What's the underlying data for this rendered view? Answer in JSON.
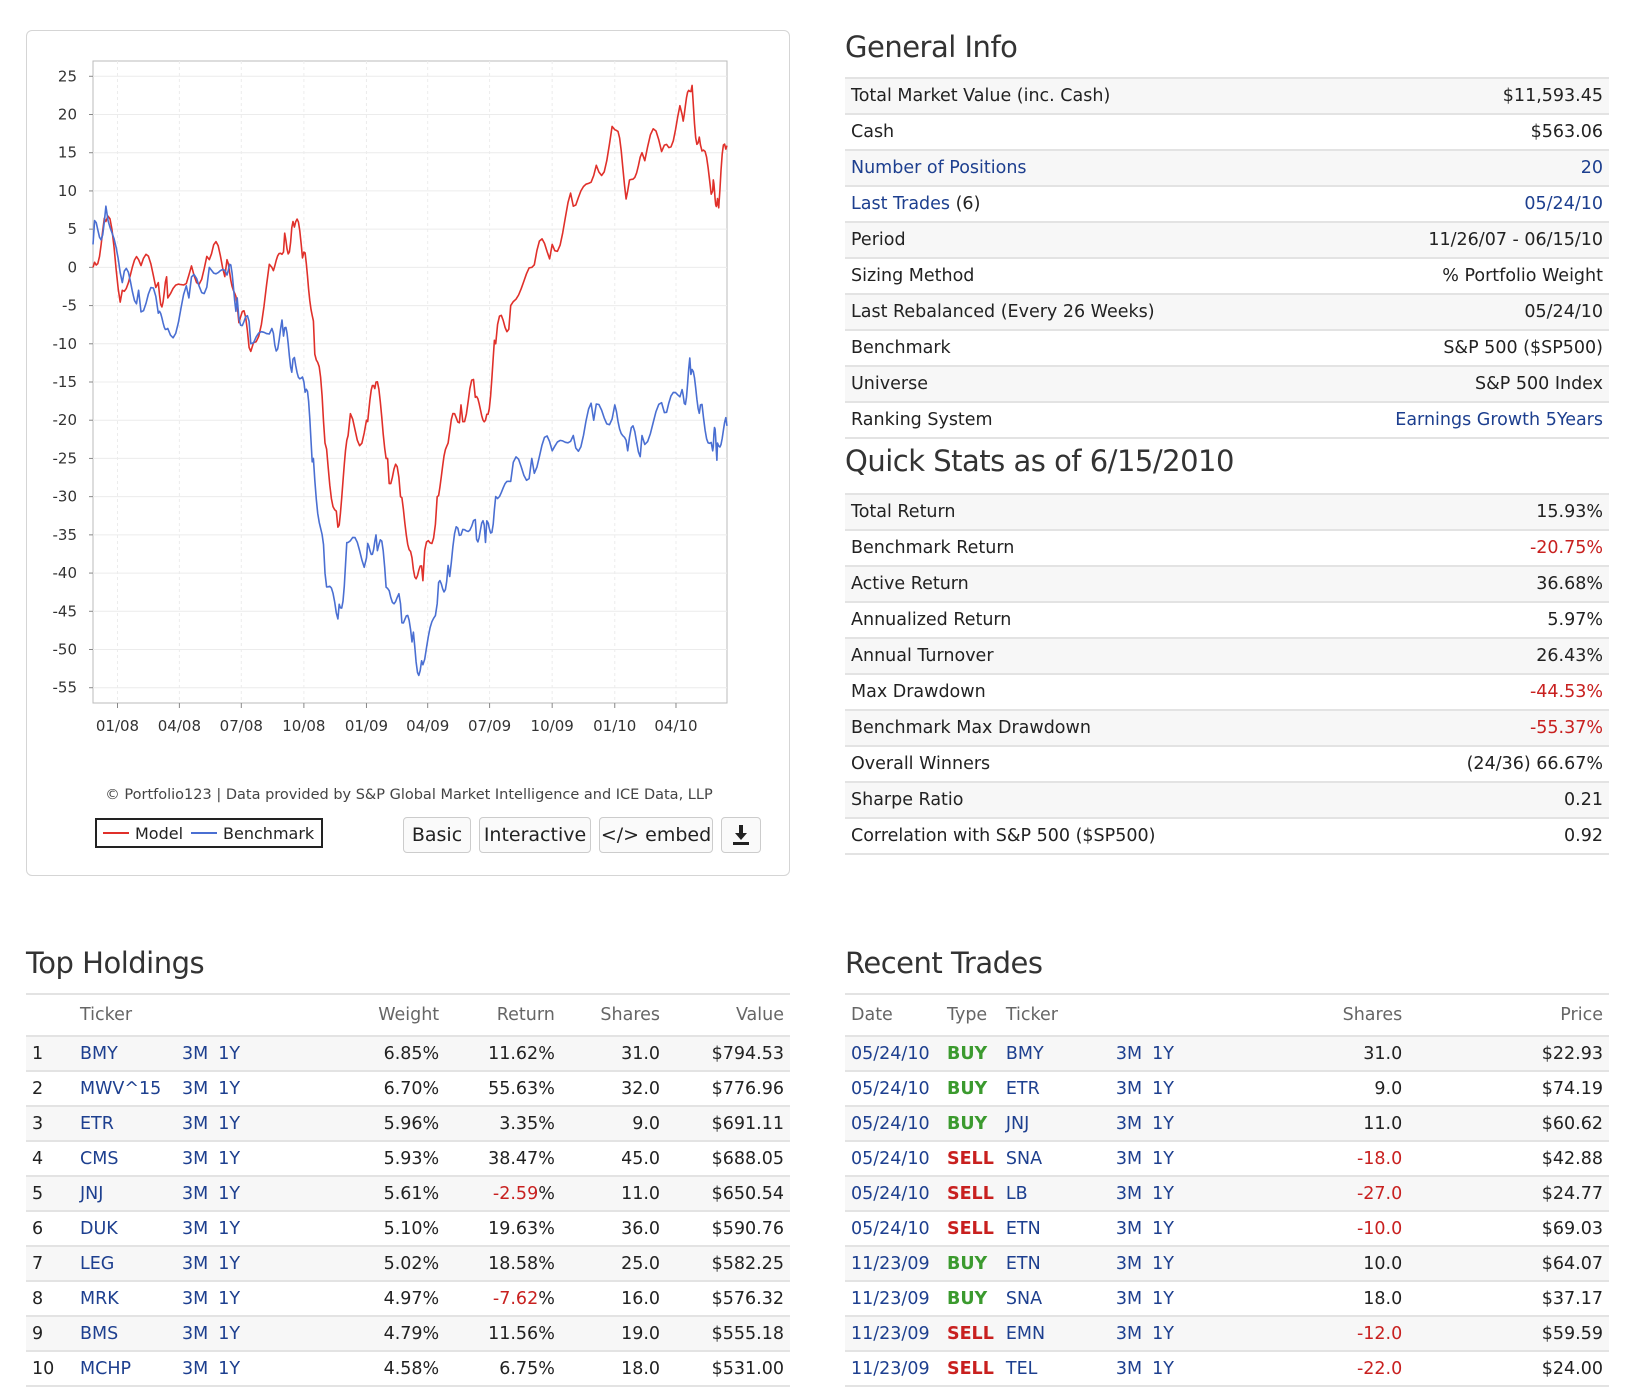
{
  "chart": {
    "credit": "© Portfolio123 | Data provided by S&P Global Market Intelligence and ICE Data, LLP",
    "legend": {
      "model": "Model",
      "benchmark": "Benchmark"
    },
    "buttons": {
      "basic": "Basic",
      "interactive": "Interactive",
      "embed": "</> embed"
    },
    "colors": {
      "model": "#e0302a",
      "benchmark": "#4a6fd2"
    }
  },
  "chart_data": {
    "type": "line",
    "title": "",
    "xlabel": "",
    "ylabel": "",
    "ylim": [
      -57,
      27
    ],
    "y_ticks": [
      25,
      20,
      15,
      10,
      5,
      0,
      -5,
      -10,
      -15,
      -20,
      -25,
      -30,
      -35,
      -40,
      -45,
      -50,
      -55
    ],
    "x_ticks": [
      "01/08",
      "04/08",
      "07/08",
      "10/08",
      "01/09",
      "04/09",
      "07/09",
      "10/09",
      "01/10",
      "04/10"
    ],
    "x_range": [
      "11/26/07",
      "06/15/10"
    ],
    "grid": true,
    "legend_position": "bottom-left",
    "x": [
      "11/26/07",
      "12/15/07",
      "01/08/08",
      "02/01/08",
      "03/01/08",
      "03/15/08",
      "04/15/08",
      "05/15/08",
      "06/10/08",
      "06/25/08",
      "07/15/08",
      "08/15/08",
      "09/01/08",
      "09/15/08",
      "10/01/08",
      "10/15/08",
      "11/01/08",
      "11/20/08",
      "12/05/08",
      "01/01/09",
      "01/15/09",
      "02/01/09",
      "02/20/09",
      "03/09/09",
      "03/25/09",
      "04/15/09",
      "05/01/09",
      "05/20/09",
      "06/10/09",
      "06/25/09",
      "07/10/09",
      "08/01/09",
      "09/01/09",
      "10/01/09",
      "11/01/09",
      "12/01/09",
      "01/01/10",
      "01/20/10",
      "02/10/10",
      "03/15/10",
      "04/10/10",
      "04/23/10",
      "05/07/10",
      "05/25/10",
      "06/01/10",
      "06/15/10"
    ],
    "series": [
      {
        "name": "Model",
        "values": [
          0,
          6,
          -3,
          1,
          -2,
          -4,
          -1,
          1,
          1,
          -5,
          -11,
          0,
          2,
          6,
          2,
          -7,
          -23,
          -34,
          -22,
          -20,
          -15,
          -25,
          -30,
          -38,
          -41,
          -30,
          -23,
          -18,
          -17,
          -20,
          -10,
          -5,
          0,
          3,
          8,
          12,
          18,
          10,
          15,
          16,
          20,
          23,
          16,
          10,
          9,
          15.93
        ]
      },
      {
        "name": "Benchmark",
        "values": [
          3,
          8,
          -2,
          -3,
          -6,
          -8,
          -4,
          0,
          -1,
          -4,
          -10,
          -8,
          -9,
          -12,
          -15,
          -25,
          -40,
          -46,
          -36,
          -38,
          -35,
          -42,
          -44,
          -49,
          -52,
          -44,
          -39,
          -35,
          -33,
          -36,
          -30,
          -28,
          -25,
          -24,
          -22,
          -20,
          -18,
          -24,
          -22,
          -19,
          -16,
          -14,
          -18,
          -24,
          -23,
          -20.75
        ]
      }
    ]
  },
  "general": {
    "title": "General Info",
    "rows": [
      {
        "label": "Total Market Value (inc. Cash)",
        "value": "$11,593.45",
        "link": false
      },
      {
        "label": "Cash",
        "value": "$563.06",
        "link": false
      },
      {
        "label": "Number of Positions",
        "value": "20",
        "link": true
      },
      {
        "label": "Last Trades",
        "label_extra": " (6)",
        "value": "05/24/10",
        "link": true
      },
      {
        "label": "Period",
        "value": "11/26/07 - 06/15/10",
        "link": false
      },
      {
        "label": "Sizing Method",
        "value": "% Portfolio Weight",
        "link": false
      },
      {
        "label": "Last Rebalanced (Every 26 Weeks)",
        "value": "05/24/10",
        "link": false
      },
      {
        "label": "Benchmark",
        "value": "S&P 500 ($SP500)",
        "link": false
      },
      {
        "label": "Universe",
        "value": "S&P 500 Index",
        "link": false
      },
      {
        "label": "Ranking System",
        "value": "Earnings Growth 5Years",
        "link": "value"
      }
    ]
  },
  "quick": {
    "title": "Quick Stats as of 6/15/2010",
    "rows": [
      {
        "label": "Total Return",
        "value": "15.93%",
        "neg": false
      },
      {
        "label": "Benchmark Return",
        "value": "-20.75%",
        "neg": true
      },
      {
        "label": "Active Return",
        "value": "36.68%",
        "neg": false
      },
      {
        "label": "Annualized Return",
        "value": "5.97%",
        "neg": false
      },
      {
        "label": "Annual Turnover",
        "value": "26.43%",
        "neg": false
      },
      {
        "label": "Max Drawdown",
        "value": "-44.53%",
        "neg": true
      },
      {
        "label": "Benchmark Max Drawdown",
        "value": "-55.37%",
        "neg": true
      },
      {
        "label": "Overall Winners",
        "value": "(24/36) 66.67%",
        "neg": false
      },
      {
        "label": "Sharpe Ratio",
        "value": "0.21",
        "neg": false
      },
      {
        "label": "Correlation with S&P 500 ($SP500)",
        "value": "0.92",
        "neg": false
      }
    ]
  },
  "holdings": {
    "title": "Top Holdings",
    "headers": {
      "ticker": "Ticker",
      "weight": "Weight",
      "return": "Return",
      "shares": "Shares",
      "value": "Value"
    },
    "link_3m": "3M",
    "link_1y": "1Y",
    "rows": [
      {
        "n": "1",
        "ticker": "BMY",
        "weight": "6.85%",
        "ret": "11.62",
        "neg": false,
        "shares": "31.0",
        "value": "$794.53"
      },
      {
        "n": "2",
        "ticker": "MWV^15",
        "weight": "6.70%",
        "ret": "55.63",
        "neg": false,
        "shares": "32.0",
        "value": "$776.96"
      },
      {
        "n": "3",
        "ticker": "ETR",
        "weight": "5.96%",
        "ret": "3.35",
        "neg": false,
        "shares": "9.0",
        "value": "$691.11"
      },
      {
        "n": "4",
        "ticker": "CMS",
        "weight": "5.93%",
        "ret": "38.47",
        "neg": false,
        "shares": "45.0",
        "value": "$688.05"
      },
      {
        "n": "5",
        "ticker": "JNJ",
        "weight": "5.61%",
        "ret": "-2.59",
        "neg": true,
        "shares": "11.0",
        "value": "$650.54"
      },
      {
        "n": "6",
        "ticker": "DUK",
        "weight": "5.10%",
        "ret": "19.63",
        "neg": false,
        "shares": "36.0",
        "value": "$590.76"
      },
      {
        "n": "7",
        "ticker": "LEG",
        "weight": "5.02%",
        "ret": "18.58",
        "neg": false,
        "shares": "25.0",
        "value": "$582.25"
      },
      {
        "n": "8",
        "ticker": "MRK",
        "weight": "4.97%",
        "ret": "-7.62",
        "neg": true,
        "shares": "16.0",
        "value": "$576.32"
      },
      {
        "n": "9",
        "ticker": "BMS",
        "weight": "4.79%",
        "ret": "11.56",
        "neg": false,
        "shares": "19.0",
        "value": "$555.18"
      },
      {
        "n": "10",
        "ticker": "MCHP",
        "weight": "4.58%",
        "ret": "6.75",
        "neg": false,
        "shares": "18.0",
        "value": "$531.00"
      }
    ]
  },
  "trades": {
    "title": "Recent Trades",
    "headers": {
      "date": "Date",
      "type": "Type",
      "ticker": "Ticker",
      "shares": "Shares",
      "price": "Price"
    },
    "link_3m": "3M",
    "link_1y": "1Y",
    "rows": [
      {
        "date": "05/24/10",
        "type": "BUY",
        "ticker": "BMY",
        "shares": "31.0",
        "price": "$22.93"
      },
      {
        "date": "05/24/10",
        "type": "BUY",
        "ticker": "ETR",
        "shares": "9.0",
        "price": "$74.19"
      },
      {
        "date": "05/24/10",
        "type": "BUY",
        "ticker": "JNJ",
        "shares": "11.0",
        "price": "$60.62"
      },
      {
        "date": "05/24/10",
        "type": "SELL",
        "ticker": "SNA",
        "shares": "-18.0",
        "price": "$42.88"
      },
      {
        "date": "05/24/10",
        "type": "SELL",
        "ticker": "LB",
        "shares": "-27.0",
        "price": "$24.77"
      },
      {
        "date": "05/24/10",
        "type": "SELL",
        "ticker": "ETN",
        "shares": "-10.0",
        "price": "$69.03"
      },
      {
        "date": "11/23/09",
        "type": "BUY",
        "ticker": "ETN",
        "shares": "10.0",
        "price": "$64.07"
      },
      {
        "date": "11/23/09",
        "type": "BUY",
        "ticker": "SNA",
        "shares": "18.0",
        "price": "$37.17"
      },
      {
        "date": "11/23/09",
        "type": "SELL",
        "ticker": "EMN",
        "shares": "-12.0",
        "price": "$59.59"
      },
      {
        "date": "11/23/09",
        "type": "SELL",
        "ticker": "TEL",
        "shares": "-22.0",
        "price": "$24.00"
      }
    ]
  }
}
